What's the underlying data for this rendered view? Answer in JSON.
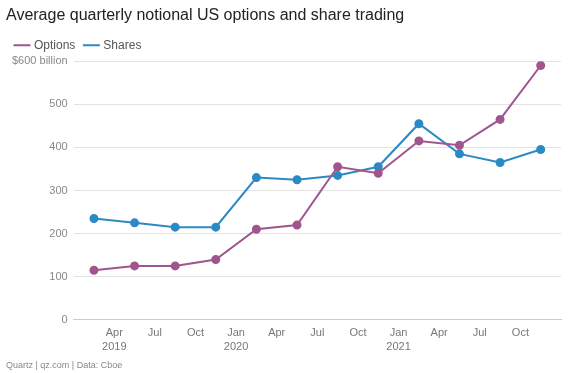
{
  "chart_data": {
    "type": "line",
    "title": "Average quarterly notional US options and share trading",
    "source": "Quartz | qz.com | Data: Cboe",
    "categories": [
      null,
      "Apr 2019",
      "Jul",
      "Oct",
      "Jan 2020",
      "Apr",
      "Jul",
      "Oct",
      "Jan 2021",
      "Apr",
      "Jul",
      "Oct"
    ],
    "series": [
      {
        "name": "Options",
        "color": "#a0558f",
        "marker": "circle",
        "line_style": "solid",
        "values": [
          115,
          125,
          125,
          140,
          210,
          220,
          355,
          340,
          415,
          405,
          465,
          590
        ]
      },
      {
        "name": "Shares",
        "color": "#2b8ac6",
        "marker": "circle",
        "line_style": "solid",
        "values": [
          235,
          225,
          215,
          215,
          330,
          325,
          335,
          355,
          455,
          385,
          365,
          395
        ]
      }
    ],
    "ylim": [
      0,
      600
    ],
    "yticks": [
      0,
      100,
      200,
      300,
      400,
      500,
      {
        "value": 600,
        "label": "$600 billion"
      }
    ],
    "grid": true,
    "legend": "top left"
  }
}
